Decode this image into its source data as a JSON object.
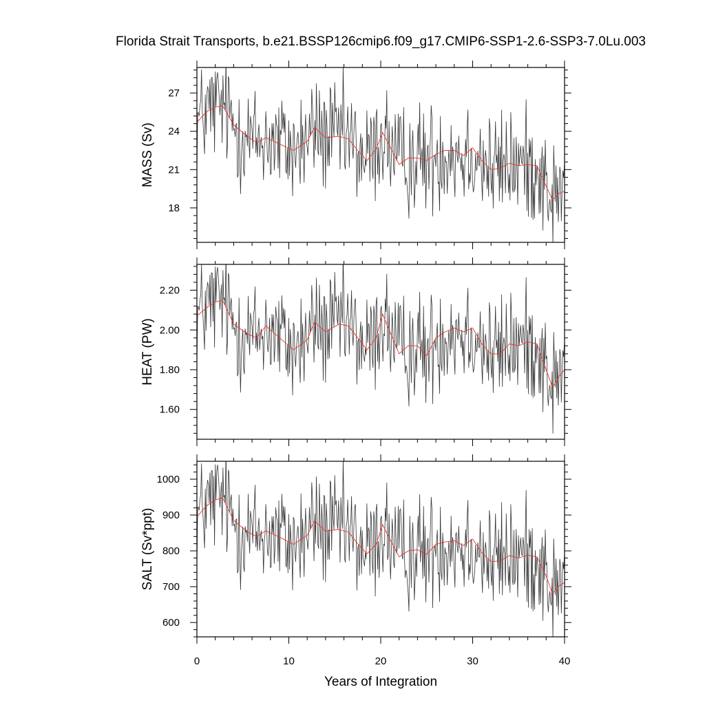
{
  "chart_data": {
    "type": "line",
    "title": "Florida Strait Transports, b.e21.BSSP126cmip6.f09_g17.CMIP6-SSP1-2.6-SSP3-7.0Lu.003",
    "xlabel": "Years of Integration",
    "xlim": [
      0,
      40
    ],
    "xticks": [
      0,
      10,
      20,
      30,
      40
    ],
    "x_tick_labels": [
      "0",
      "10",
      "20",
      "30",
      "40"
    ],
    "x_step_years": 0.0833,
    "grid": false,
    "colors": {
      "raw": "#333333",
      "smooth": "#e8322a",
      "axis": "#000000"
    },
    "panels": [
      {
        "name": "mass",
        "ylabel": "MASS (Sv)",
        "ylim": [
          15.3,
          29.0
        ],
        "yticks": [
          18,
          21,
          24,
          27
        ],
        "y_tick_labels": [
          "18",
          "21",
          "24",
          "27"
        ],
        "smooth": {
          "x": [
            0,
            1,
            2,
            2.8,
            4,
            5.5,
            6.5,
            7.5,
            9,
            10.5,
            12,
            12.8,
            14,
            15.5,
            16.5,
            17.5,
            18.5,
            19.5,
            20.2,
            21,
            22,
            23,
            24,
            25,
            26,
            27,
            28,
            29,
            30,
            31,
            32,
            33,
            34,
            35,
            36,
            37,
            38,
            38.7,
            39.3,
            40
          ],
          "y": [
            24.7,
            25.5,
            25.9,
            26.0,
            24.5,
            23.6,
            23.1,
            23.5,
            23.0,
            22.5,
            23.2,
            24.3,
            23.5,
            23.6,
            23.4,
            22.5,
            21.7,
            22.6,
            23.9,
            22.8,
            21.4,
            21.9,
            21.9,
            21.7,
            22.2,
            22.5,
            22.5,
            22.1,
            22.7,
            21.7,
            21.0,
            21.1,
            21.5,
            21.3,
            21.4,
            21.3,
            19.7,
            18.6,
            19.1,
            19.3
          ]
        }
      },
      {
        "name": "heat",
        "ylabel": "HEAT (PW)",
        "ylim": [
          1.45,
          2.33
        ],
        "yticks": [
          1.6,
          1.8,
          2.0,
          2.2
        ],
        "y_tick_labels": [
          "1.60",
          "1.80",
          "2.00",
          "2.20"
        ],
        "smooth": {
          "x": [
            0,
            1,
            2,
            2.8,
            4,
            5.5,
            6.5,
            7.5,
            9,
            10.5,
            12,
            12.8,
            14,
            15.5,
            16.5,
            17.5,
            18.5,
            19.5,
            20.2,
            21,
            22,
            23,
            24,
            25,
            26,
            27,
            28,
            29,
            30,
            31,
            32,
            33,
            34,
            35,
            36,
            37,
            38,
            38.7,
            39.3,
            40
          ],
          "y": [
            2.07,
            2.11,
            2.14,
            2.15,
            2.03,
            1.98,
            1.96,
            2.02,
            1.96,
            1.9,
            1.95,
            2.04,
            1.99,
            2.03,
            2.02,
            1.96,
            1.9,
            1.96,
            2.08,
            1.99,
            1.88,
            1.92,
            1.92,
            1.87,
            1.96,
            1.99,
            2.01,
            1.99,
            2.01,
            1.93,
            1.88,
            1.88,
            1.93,
            1.92,
            1.94,
            1.93,
            1.8,
            1.71,
            1.76,
            1.8
          ]
        }
      },
      {
        "name": "salt",
        "ylabel": "SALT (Sv*ppt)",
        "ylim": [
          560,
          1050
        ],
        "yticks": [
          600,
          700,
          800,
          900,
          1000
        ],
        "y_tick_labels": [
          "600",
          "700",
          "800",
          "900",
          "1000"
        ],
        "smooth": {
          "x": [
            0,
            1,
            2,
            2.8,
            4,
            5.5,
            6.5,
            7.5,
            9,
            10.5,
            12,
            12.8,
            14,
            15.5,
            16.5,
            17.5,
            18.5,
            19.5,
            20.2,
            21,
            22,
            23,
            24,
            25,
            26,
            27,
            28,
            29,
            30,
            31,
            32,
            33,
            34,
            35,
            36,
            37,
            38,
            38.7,
            39.3,
            40
          ],
          "y": [
            895,
            925,
            942,
            948,
            885,
            853,
            840,
            856,
            838,
            818,
            843,
            884,
            855,
            860,
            852,
            820,
            792,
            818,
            873,
            832,
            783,
            800,
            803,
            790,
            818,
            825,
            828,
            815,
            833,
            795,
            770,
            772,
            787,
            780,
            788,
            783,
            730,
            680,
            700,
            712
          ]
        }
      }
    ]
  }
}
